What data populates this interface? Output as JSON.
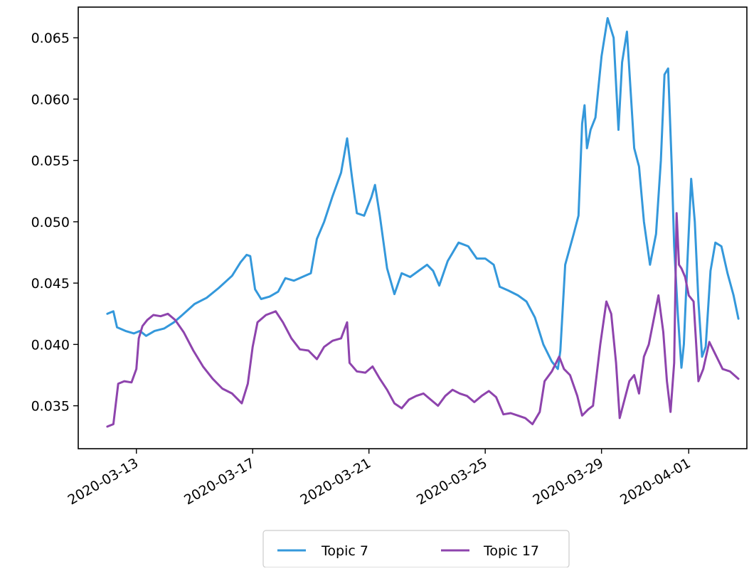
{
  "chart_data": {
    "type": "line",
    "title": "",
    "xlabel": "",
    "ylabel": "",
    "x_type": "date",
    "xlim": [
      "2020-03-11",
      "2020-04-03"
    ],
    "ylim": [
      0.0315,
      0.0675
    ],
    "grid": false,
    "legend_placement": "bottom-center-below-axes",
    "y_ticks": [
      {
        "value": 0.035,
        "label": "0.035"
      },
      {
        "value": 0.04,
        "label": "0.040"
      },
      {
        "value": 0.045,
        "label": "0.045"
      },
      {
        "value": 0.05,
        "label": "0.050"
      },
      {
        "value": 0.055,
        "label": "0.055"
      },
      {
        "value": 0.06,
        "label": "0.060"
      },
      {
        "value": 0.065,
        "label": "0.065"
      }
    ],
    "x_ticks": [
      {
        "value": "2020-03-13",
        "label": "2020-03-13"
      },
      {
        "value": "2020-03-17",
        "label": "2020-03-17"
      },
      {
        "value": "2020-03-21",
        "label": "2020-03-21"
      },
      {
        "value": "2020-03-25",
        "label": "2020-03-25"
      },
      {
        "value": "2020-03-29",
        "label": "2020-03-29"
      },
      {
        "value": "2020-04-01",
        "label": "2020-04-01"
      }
    ],
    "series": [
      {
        "name": "Topic 7",
        "color": "#3498db",
        "points": [
          [
            "2020-03-12T00:00",
            0.0425
          ],
          [
            "2020-03-12T05:00",
            0.0427
          ],
          [
            "2020-03-12T08:00",
            0.0414
          ],
          [
            "2020-03-12T15:00",
            0.0411
          ],
          [
            "2020-03-12T22:00",
            0.0409
          ],
          [
            "2020-03-13T03:00",
            0.0411
          ],
          [
            "2020-03-13T08:00",
            0.0407
          ],
          [
            "2020-03-13T15:00",
            0.0411
          ],
          [
            "2020-03-13T23:00",
            0.0413
          ],
          [
            "2020-03-14T07:00",
            0.0418
          ],
          [
            "2020-03-14T15:00",
            0.0425
          ],
          [
            "2020-03-15T00:00",
            0.0433
          ],
          [
            "2020-03-15T10:00",
            0.0438
          ],
          [
            "2020-03-15T20:00",
            0.0446
          ],
          [
            "2020-03-16T07:00",
            0.0456
          ],
          [
            "2020-03-16T14:00",
            0.0467
          ],
          [
            "2020-03-16T19:00",
            0.0473
          ],
          [
            "2020-03-16T22:00",
            0.0472
          ],
          [
            "2020-03-17T02:00",
            0.0445
          ],
          [
            "2020-03-17T07:00",
            0.0437
          ],
          [
            "2020-03-17T14:00",
            0.0439
          ],
          [
            "2020-03-17T21:00",
            0.0443
          ],
          [
            "2020-03-18T03:00",
            0.0454
          ],
          [
            "2020-03-18T10:00",
            0.0452
          ],
          [
            "2020-03-18T17:00",
            0.0455
          ],
          [
            "2020-03-19T00:00",
            0.0458
          ],
          [
            "2020-03-19T05:00",
            0.0486
          ],
          [
            "2020-03-19T11:00",
            0.05
          ],
          [
            "2020-03-19T18:00",
            0.0521
          ],
          [
            "2020-03-20T01:00",
            0.054
          ],
          [
            "2020-03-20T06:00",
            0.0568
          ],
          [
            "2020-03-20T10:00",
            0.0536
          ],
          [
            "2020-03-20T14:00",
            0.0507
          ],
          [
            "2020-03-20T20:00",
            0.0505
          ],
          [
            "2020-03-21T02:00",
            0.052
          ],
          [
            "2020-03-21T05:00",
            0.053
          ],
          [
            "2020-03-21T09:00",
            0.0505
          ],
          [
            "2020-03-21T15:00",
            0.0462
          ],
          [
            "2020-03-21T21:00",
            0.0441
          ],
          [
            "2020-03-22T03:00",
            0.0458
          ],
          [
            "2020-03-22T10:00",
            0.0455
          ],
          [
            "2020-03-22T17:00",
            0.046
          ],
          [
            "2020-03-23T00:00",
            0.0465
          ],
          [
            "2020-03-23T05:00",
            0.046
          ],
          [
            "2020-03-23T10:00",
            0.0448
          ],
          [
            "2020-03-23T17:00",
            0.0468
          ],
          [
            "2020-03-24T02:00",
            0.0483
          ],
          [
            "2020-03-24T10:00",
            0.048
          ],
          [
            "2020-03-24T17:00",
            0.047
          ],
          [
            "2020-03-25T00:00",
            0.047
          ],
          [
            "2020-03-25T07:00",
            0.0465
          ],
          [
            "2020-03-25T12:00",
            0.0447
          ],
          [
            "2020-03-25T19:00",
            0.0444
          ],
          [
            "2020-03-26T03:00",
            0.044
          ],
          [
            "2020-03-26T10:00",
            0.0435
          ],
          [
            "2020-03-26T17:00",
            0.0422
          ],
          [
            "2020-03-27T00:00",
            0.04
          ],
          [
            "2020-03-27T07:00",
            0.0386
          ],
          [
            "2020-03-27T12:00",
            0.038
          ],
          [
            "2020-03-27T14:00",
            0.0395
          ],
          [
            "2020-03-27T18:00",
            0.0465
          ],
          [
            "2020-03-28T01:00",
            0.049
          ],
          [
            "2020-03-28T05:00",
            0.0505
          ],
          [
            "2020-03-28T08:00",
            0.058
          ],
          [
            "2020-03-28T10:00",
            0.0595
          ],
          [
            "2020-03-28T12:00",
            0.056
          ],
          [
            "2020-03-28T15:00",
            0.0575
          ],
          [
            "2020-03-28T19:00",
            0.0585
          ],
          [
            "2020-03-29T00:00",
            0.0635
          ],
          [
            "2020-03-29T05:00",
            0.0666
          ],
          [
            "2020-03-29T10:00",
            0.065
          ],
          [
            "2020-03-29T14:00",
            0.0575
          ],
          [
            "2020-03-29T17:00",
            0.063
          ],
          [
            "2020-03-29T21:00",
            0.0655
          ],
          [
            "2020-03-30T03:00",
            0.056
          ],
          [
            "2020-03-30T07:00",
            0.0545
          ],
          [
            "2020-03-30T11:00",
            0.05
          ],
          [
            "2020-03-30T16:00",
            0.0465
          ],
          [
            "2020-03-30T21:00",
            0.049
          ],
          [
            "2020-03-31T01:00",
            0.055
          ],
          [
            "2020-03-31T04:00",
            0.062
          ],
          [
            "2020-03-31T07:00",
            0.0625
          ],
          [
            "2020-03-31T10:00",
            0.0545
          ],
          [
            "2020-03-31T12:00",
            0.048
          ],
          [
            "2020-03-31T15:00",
            0.0425
          ],
          [
            "2020-03-31T18:00",
            0.0381
          ],
          [
            "2020-03-31T20:00",
            0.04
          ],
          [
            "2020-03-31T23:00",
            0.047
          ],
          [
            "2020-04-01T02:00",
            0.0535
          ],
          [
            "2020-04-01T05:00",
            0.05
          ],
          [
            "2020-04-01T08:00",
            0.0435
          ],
          [
            "2020-04-01T11:00",
            0.039
          ],
          [
            "2020-04-01T14:00",
            0.0398
          ],
          [
            "2020-04-01T18:00",
            0.046
          ],
          [
            "2020-04-01T22:00",
            0.0483
          ],
          [
            "2020-04-02T03:00",
            0.048
          ],
          [
            "2020-04-02T08:00",
            0.0458
          ],
          [
            "2020-04-02T13:00",
            0.044
          ],
          [
            "2020-04-02T17:00",
            0.0421
          ]
        ]
      },
      {
        "name": "Topic 17",
        "color": "#8e44ad",
        "points": [
          [
            "2020-03-12T00:00",
            0.0333
          ],
          [
            "2020-03-12T05:00",
            0.0335
          ],
          [
            "2020-03-12T09:00",
            0.0368
          ],
          [
            "2020-03-12T14:00",
            0.037
          ],
          [
            "2020-03-12T20:00",
            0.0369
          ],
          [
            "2020-03-13T00:00",
            0.038
          ],
          [
            "2020-03-13T02:00",
            0.0405
          ],
          [
            "2020-03-13T05:00",
            0.0415
          ],
          [
            "2020-03-13T09:00",
            0.042
          ],
          [
            "2020-03-13T14:00",
            0.0424
          ],
          [
            "2020-03-13T20:00",
            0.0423
          ],
          [
            "2020-03-14T02:00",
            0.0425
          ],
          [
            "2020-03-14T08:00",
            0.042
          ],
          [
            "2020-03-14T15:00",
            0.041
          ],
          [
            "2020-03-14T23:00",
            0.0395
          ],
          [
            "2020-03-15T07:00",
            0.0382
          ],
          [
            "2020-03-15T15:00",
            0.0372
          ],
          [
            "2020-03-15T23:00",
            0.0364
          ],
          [
            "2020-03-16T07:00",
            0.036
          ],
          [
            "2020-03-16T15:00",
            0.0352
          ],
          [
            "2020-03-16T20:00",
            0.0368
          ],
          [
            "2020-03-17T00:00",
            0.0398
          ],
          [
            "2020-03-17T04:00",
            0.0418
          ],
          [
            "2020-03-17T11:00",
            0.0424
          ],
          [
            "2020-03-17T19:00",
            0.0427
          ],
          [
            "2020-03-18T01:00",
            0.0418
          ],
          [
            "2020-03-18T08:00",
            0.0405
          ],
          [
            "2020-03-18T15:00",
            0.0396
          ],
          [
            "2020-03-18T22:00",
            0.0395
          ],
          [
            "2020-03-19T05:00",
            0.0388
          ],
          [
            "2020-03-19T11:00",
            0.0398
          ],
          [
            "2020-03-19T18:00",
            0.0403
          ],
          [
            "2020-03-20T01:00",
            0.0405
          ],
          [
            "2020-03-20T06:00",
            0.0418
          ],
          [
            "2020-03-20T08:00",
            0.0385
          ],
          [
            "2020-03-20T14:00",
            0.0378
          ],
          [
            "2020-03-20T21:00",
            0.0377
          ],
          [
            "2020-03-21T03:00",
            0.0382
          ],
          [
            "2020-03-21T09:00",
            0.0372
          ],
          [
            "2020-03-21T15:00",
            0.0363
          ],
          [
            "2020-03-21T21:00",
            0.0352
          ],
          [
            "2020-03-22T03:00",
            0.0348
          ],
          [
            "2020-03-22T09:00",
            0.0355
          ],
          [
            "2020-03-22T15:00",
            0.0358
          ],
          [
            "2020-03-22T21:00",
            0.036
          ],
          [
            "2020-03-23T03:00",
            0.0355
          ],
          [
            "2020-03-23T09:00",
            0.035
          ],
          [
            "2020-03-23T15:00",
            0.0358
          ],
          [
            "2020-03-23T21:00",
            0.0363
          ],
          [
            "2020-03-24T03:00",
            0.036
          ],
          [
            "2020-03-24T09:00",
            0.0358
          ],
          [
            "2020-03-24T15:00",
            0.0353
          ],
          [
            "2020-03-24T21:00",
            0.0358
          ],
          [
            "2020-03-25T03:00",
            0.0362
          ],
          [
            "2020-03-25T09:00",
            0.0357
          ],
          [
            "2020-03-25T15:00",
            0.0343
          ],
          [
            "2020-03-25T21:00",
            0.0344
          ],
          [
            "2020-03-26T03:00",
            0.0342
          ],
          [
            "2020-03-26T09:00",
            0.034
          ],
          [
            "2020-03-26T15:00",
            0.0335
          ],
          [
            "2020-03-26T21:00",
            0.0345
          ],
          [
            "2020-03-27T01:00",
            0.037
          ],
          [
            "2020-03-27T07:00",
            0.0378
          ],
          [
            "2020-03-27T13:00",
            0.039
          ],
          [
            "2020-03-27T17:00",
            0.038
          ],
          [
            "2020-03-27T22:00",
            0.0375
          ],
          [
            "2020-03-28T04:00",
            0.0358
          ],
          [
            "2020-03-28T08:00",
            0.0342
          ],
          [
            "2020-03-28T13:00",
            0.0347
          ],
          [
            "2020-03-28T17:00",
            0.035
          ],
          [
            "2020-03-28T23:00",
            0.04
          ],
          [
            "2020-03-29T04:00",
            0.0435
          ],
          [
            "2020-03-29T08:00",
            0.0425
          ],
          [
            "2020-03-29T12:00",
            0.0385
          ],
          [
            "2020-03-29T15:00",
            0.034
          ],
          [
            "2020-03-29T19:00",
            0.0355
          ],
          [
            "2020-03-29T23:00",
            0.037
          ],
          [
            "2020-03-30T03:00",
            0.0375
          ],
          [
            "2020-03-30T07:00",
            0.036
          ],
          [
            "2020-03-30T11:00",
            0.039
          ],
          [
            "2020-03-30T15:00",
            0.04
          ],
          [
            "2020-03-30T19:00",
            0.042
          ],
          [
            "2020-03-30T23:00",
            0.044
          ],
          [
            "2020-03-31T03:00",
            0.041
          ],
          [
            "2020-03-31T06:00",
            0.037
          ],
          [
            "2020-03-31T09:00",
            0.0345
          ],
          [
            "2020-03-31T12:00",
            0.0385
          ],
          [
            "2020-03-31T14:00",
            0.0507
          ],
          [
            "2020-03-31T16:00",
            0.0465
          ],
          [
            "2020-03-31T18:00",
            0.0462
          ],
          [
            "2020-03-31T21:00",
            0.0455
          ],
          [
            "2020-04-01T00:00",
            0.044
          ],
          [
            "2020-04-01T04:00",
            0.0435
          ],
          [
            "2020-04-01T08:00",
            0.037
          ],
          [
            "2020-04-01T12:00",
            0.038
          ],
          [
            "2020-04-01T17:00",
            0.0402
          ],
          [
            "2020-04-01T22:00",
            0.0392
          ],
          [
            "2020-04-02T04:00",
            0.038
          ],
          [
            "2020-04-02T10:00",
            0.0378
          ],
          [
            "2020-04-02T17:00",
            0.0372
          ]
        ]
      }
    ]
  }
}
